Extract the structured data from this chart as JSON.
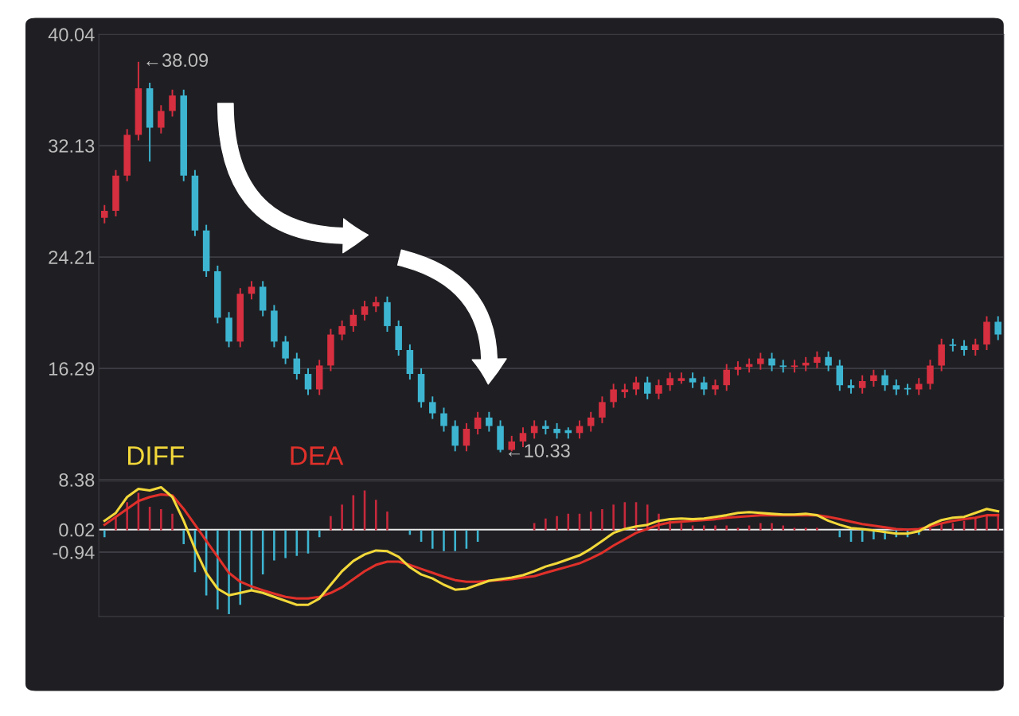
{
  "chart_data": [
    {
      "type": "candlestick",
      "categories": [
        null,
        null,
        null,
        null,
        null,
        null,
        null,
        null,
        null,
        null,
        null,
        null,
        null,
        null,
        null,
        null,
        null,
        null,
        null,
        null,
        null,
        null,
        null,
        null,
        null,
        null,
        null,
        null,
        null,
        null,
        null,
        null,
        null,
        null,
        null,
        null,
        null,
        null,
        null,
        null,
        null,
        null,
        null,
        null,
        null,
        null,
        null,
        null,
        null,
        null,
        null,
        null,
        null,
        null,
        null,
        null,
        null,
        null,
        null,
        null,
        null,
        null,
        null,
        null,
        null,
        null,
        null,
        null,
        null,
        null,
        null,
        null,
        null,
        null,
        null,
        null,
        null,
        null,
        null,
        null
      ],
      "ohlc": [
        [
          27.0,
          27.9,
          26.6,
          27.5
        ],
        [
          27.5,
          30.4,
          27.1,
          30.0
        ],
        [
          30.0,
          33.3,
          29.6,
          32.9
        ],
        [
          32.9,
          38.09,
          32.5,
          36.2
        ],
        [
          36.2,
          36.6,
          31.0,
          33.4
        ],
        [
          33.4,
          35.0,
          33.0,
          34.6
        ],
        [
          34.6,
          36.1,
          34.2,
          35.7
        ],
        [
          35.7,
          36.1,
          29.6,
          30.0
        ],
        [
          30.0,
          30.4,
          25.7,
          26.1
        ],
        [
          26.1,
          26.5,
          22.8,
          23.2
        ],
        [
          23.2,
          23.6,
          19.5,
          19.9
        ],
        [
          19.9,
          20.3,
          17.8,
          18.2
        ],
        [
          18.2,
          22.0,
          17.8,
          21.6
        ],
        [
          21.6,
          22.5,
          21.2,
          22.1
        ],
        [
          22.1,
          22.5,
          20.0,
          20.4
        ],
        [
          20.4,
          20.8,
          17.8,
          18.2
        ],
        [
          18.2,
          18.6,
          16.6,
          17.0
        ],
        [
          17.0,
          17.4,
          15.5,
          15.9
        ],
        [
          15.9,
          16.3,
          14.4,
          14.8
        ],
        [
          14.8,
          16.9,
          14.4,
          16.5
        ],
        [
          16.5,
          19.1,
          16.1,
          18.7
        ],
        [
          18.7,
          19.7,
          18.3,
          19.3
        ],
        [
          19.3,
          20.5,
          18.9,
          20.1
        ],
        [
          20.1,
          21.1,
          19.7,
          20.7
        ],
        [
          20.7,
          21.4,
          20.3,
          21.0
        ],
        [
          21.0,
          21.4,
          18.9,
          19.3
        ],
        [
          19.3,
          19.7,
          17.2,
          17.6
        ],
        [
          17.6,
          18.0,
          15.5,
          15.9
        ],
        [
          15.9,
          16.3,
          13.5,
          13.9
        ],
        [
          13.9,
          14.3,
          12.7,
          13.1
        ],
        [
          13.1,
          13.5,
          11.8,
          12.2
        ],
        [
          12.2,
          12.6,
          10.4,
          10.8
        ],
        [
          10.8,
          12.4,
          10.4,
          12.0
        ],
        [
          12.0,
          13.2,
          11.6,
          12.8
        ],
        [
          12.8,
          13.2,
          11.8,
          12.2
        ],
        [
          12.2,
          12.6,
          10.33,
          10.5
        ],
        [
          10.5,
          11.5,
          10.4,
          11.1
        ],
        [
          11.1,
          12.1,
          10.7,
          11.7
        ],
        [
          11.7,
          12.6,
          11.3,
          12.2
        ],
        [
          12.2,
          12.6,
          11.6,
          12.0
        ],
        [
          12.0,
          12.4,
          11.3,
          11.7
        ],
        [
          11.9,
          12.1,
          11.3,
          11.7
        ],
        [
          11.7,
          12.6,
          11.3,
          12.2
        ],
        [
          12.2,
          13.2,
          11.8,
          12.8
        ],
        [
          12.8,
          14.3,
          12.4,
          13.9
        ],
        [
          13.9,
          15.2,
          13.5,
          14.8
        ],
        [
          14.6,
          15.2,
          14.2,
          14.8
        ],
        [
          14.8,
          15.7,
          14.4,
          15.3
        ],
        [
          15.3,
          15.7,
          14.1,
          14.5
        ],
        [
          14.5,
          15.5,
          14.1,
          15.1
        ],
        [
          15.1,
          16.0,
          14.7,
          15.6
        ],
        [
          15.4,
          16.0,
          15.2,
          15.6
        ],
        [
          15.6,
          16.0,
          14.9,
          15.3
        ],
        [
          15.3,
          15.7,
          14.4,
          14.8
        ],
        [
          14.8,
          15.5,
          14.4,
          15.1
        ],
        [
          15.1,
          16.6,
          14.7,
          16.2
        ],
        [
          16.2,
          16.8,
          15.8,
          16.4
        ],
        [
          16.4,
          17.0,
          16.0,
          16.6
        ],
        [
          16.6,
          17.4,
          16.2,
          17.0
        ],
        [
          17.0,
          17.4,
          16.1,
          16.5
        ],
        [
          16.5,
          16.9,
          16.0,
          16.4
        ],
        [
          16.4,
          16.9,
          16.0,
          16.5
        ],
        [
          16.5,
          17.1,
          16.1,
          16.7
        ],
        [
          16.7,
          17.5,
          16.3,
          17.1
        ],
        [
          17.1,
          17.5,
          16.1,
          16.5
        ],
        [
          16.5,
          16.9,
          14.7,
          15.1
        ],
        [
          15.1,
          15.5,
          14.5,
          14.9
        ],
        [
          14.9,
          15.8,
          14.5,
          15.4
        ],
        [
          15.4,
          16.2,
          15.0,
          15.8
        ],
        [
          15.8,
          16.2,
          14.7,
          15.1
        ],
        [
          15.1,
          15.5,
          14.4,
          14.8
        ],
        [
          14.9,
          15.2,
          14.4,
          14.8
        ],
        [
          14.8,
          15.6,
          14.4,
          15.2
        ],
        [
          15.2,
          16.9,
          14.8,
          16.5
        ],
        [
          16.5,
          18.4,
          16.1,
          18.0
        ],
        [
          18.0,
          18.4,
          17.5,
          17.9
        ],
        [
          17.9,
          18.3,
          17.2,
          17.6
        ],
        [
          17.6,
          18.4,
          17.2,
          18.0
        ],
        [
          18.0,
          20.0,
          17.6,
          19.6
        ],
        [
          19.6,
          20.0,
          18.3,
          18.7
        ]
      ],
      "colors": [
        "#d62f3f",
        "#d62f3f",
        "#d62f3f",
        "#d62f3f",
        "#3db5d1",
        "#d62f3f",
        "#d62f3f",
        "#3db5d1",
        "#3db5d1",
        "#3db5d1",
        "#3db5d1",
        "#3db5d1",
        "#d62f3f",
        "#d62f3f",
        "#3db5d1",
        "#3db5d1",
        "#3db5d1",
        "#3db5d1",
        "#3db5d1",
        "#d62f3f",
        "#d62f3f",
        "#d62f3f",
        "#d62f3f",
        "#d62f3f",
        "#d62f3f",
        "#3db5d1",
        "#3db5d1",
        "#3db5d1",
        "#3db5d1",
        "#3db5d1",
        "#3db5d1",
        "#3db5d1",
        "#d62f3f",
        "#d62f3f",
        "#3db5d1",
        "#3db5d1",
        "#d62f3f",
        "#d62f3f",
        "#d62f3f",
        "#3db5d1",
        "#3db5d1",
        "#3db5d1",
        "#d62f3f",
        "#d62f3f",
        "#d62f3f",
        "#d62f3f",
        "#d62f3f",
        "#d62f3f",
        "#3db5d1",
        "#d62f3f",
        "#d62f3f",
        "#d62f3f",
        "#3db5d1",
        "#3db5d1",
        "#d62f3f",
        "#d62f3f",
        "#d62f3f",
        "#d62f3f",
        "#d62f3f",
        "#3db5d1",
        "#3db5d1",
        "#d62f3f",
        "#d62f3f",
        "#d62f3f",
        "#3db5d1",
        "#3db5d1",
        "#3db5d1",
        "#d62f3f",
        "#d62f3f",
        "#3db5d1",
        "#3db5d1",
        "#3db5d1",
        "#d62f3f",
        "#d62f3f",
        "#d62f3f",
        "#3db5d1",
        "#3db5d1",
        "#d62f3f",
        "#d62f3f",
        "#3db5d1"
      ],
      "ylim": [
        8.38,
        40.04
      ],
      "yticks": [
        8.38,
        16.29,
        24.21,
        32.13,
        40.04
      ],
      "grid": "y",
      "tick_labels": "y",
      "annotations": [
        "←38.09",
        "←10.33"
      ]
    },
    {
      "type": "line",
      "categories": [
        null,
        null,
        null,
        null,
        null,
        null,
        null,
        null,
        null,
        null,
        null,
        null,
        null,
        null,
        null,
        null,
        null,
        null,
        null,
        null,
        null,
        null,
        null,
        null,
        null,
        null,
        null,
        null,
        null,
        null,
        null,
        null,
        null,
        null,
        null,
        null,
        null,
        null,
        null,
        null,
        null,
        null,
        null,
        null,
        null,
        null,
        null,
        null,
        null,
        null,
        null,
        null,
        null,
        null,
        null,
        null,
        null,
        null,
        null,
        null,
        null,
        null,
        null,
        null,
        null,
        null,
        null,
        null,
        null,
        null,
        null,
        null,
        null,
        null,
        null,
        null,
        null,
        null,
        null,
        null
      ],
      "series": [
        {
          "type": "bar",
          "colors": [
            "#3db5d1",
            "#c8283c",
            "#c8283c",
            "#c8283c",
            "#c8283c",
            "#c8283c",
            "#c8283c",
            "#3db5d1",
            "#3db5d1",
            "#3db5d1",
            "#3db5d1",
            "#3db5d1",
            "#3db5d1",
            "#3db5d1",
            "#3db5d1",
            "#3db5d1",
            "#3db5d1",
            "#3db5d1",
            "#3db5d1",
            "#3db5d1",
            "#c8283c",
            "#c8283c",
            "#c8283c",
            "#c8283c",
            "#c8283c",
            "#c8283c",
            "#c8283c",
            "#3db5d1",
            "#3db5d1",
            "#3db5d1",
            "#3db5d1",
            "#3db5d1",
            "#3db5d1",
            "#3db5d1",
            "#c8283c",
            "#c8283c",
            "#c8283c",
            "#c8283c",
            "#c8283c",
            "#c8283c",
            "#c8283c",
            "#c8283c",
            "#c8283c",
            "#c8283c",
            "#c8283c",
            "#c8283c",
            "#c8283c",
            "#c8283c",
            "#c8283c",
            "#c8283c",
            "#c8283c",
            "#c8283c",
            "#c8283c",
            "#c8283c",
            "#c8283c",
            "#c8283c",
            "#c8283c",
            "#c8283c",
            "#c8283c",
            "#c8283c",
            "#c8283c",
            "#c8283c",
            "#c8283c",
            "#c8283c",
            "#c8283c",
            "#3db5d1",
            "#3db5d1",
            "#3db5d1",
            "#3db5d1",
            "#3db5d1",
            "#3db5d1",
            "#3db5d1",
            "#3db5d1",
            "#c8283c",
            "#c8283c",
            "#c8283c",
            "#c8283c",
            "#c8283c",
            "#c8283c",
            "#c8283c"
          ],
          "values": [
            -0.3,
            0.6,
            1.2,
            1.6,
            1.0,
            0.9,
            0.7,
            -0.6,
            -1.8,
            -2.8,
            -3.4,
            -3.6,
            -3.2,
            -2.6,
            -1.9,
            -1.3,
            -1.2,
            -1.1,
            -1.0,
            -0.3,
            0.6,
            1.1,
            1.5,
            1.7,
            1.3,
            0.8,
            0,
            -0.2,
            -0.5,
            -0.8,
            -0.9,
            -0.9,
            -0.8,
            -0.5,
            0,
            0,
            0,
            0,
            0.3,
            0.5,
            0.6,
            0.7,
            0.7,
            0.8,
            0.9,
            1.1,
            1.2,
            1.2,
            1.1,
            0.7,
            0.4,
            0.3,
            0.2,
            0.2,
            0.2,
            0.2,
            0.1,
            0.2,
            0.3,
            0.3,
            0.2,
            0.1,
            0.1,
            0.1,
            0,
            -0.3,
            -0.5,
            -0.5,
            -0.4,
            -0.4,
            -0.3,
            -0.3,
            -0.2,
            0.1,
            0.3,
            0.3,
            0.4,
            0.5,
            0.6,
            0.7
          ]
        },
        {
          "name": "DEA",
          "type": "line",
          "color": "#e0302a",
          "values": [
            0.23,
            0.57,
            0.91,
            1.25,
            1.42,
            1.53,
            1.49,
            0.91,
            0.23,
            -0.46,
            -1.14,
            -1.83,
            -2.21,
            -2.41,
            -2.58,
            -2.72,
            -2.86,
            -2.93,
            -2.93,
            -2.86,
            -2.69,
            -2.45,
            -2.1,
            -1.76,
            -1.49,
            -1.35,
            -1.35,
            -1.49,
            -1.66,
            -1.83,
            -2.0,
            -2.14,
            -2.21,
            -2.21,
            -2.17,
            -2.14,
            -2.1,
            -2.03,
            -1.97,
            -1.83,
            -1.69,
            -1.56,
            -1.42,
            -1.21,
            -0.97,
            -0.66,
            -0.39,
            -0.12,
            0.05,
            0.23,
            0.33,
            0.36,
            0.4,
            0.43,
            0.47,
            0.53,
            0.57,
            0.6,
            0.64,
            0.64,
            0.64,
            0.64,
            0.64,
            0.64,
            0.57,
            0.47,
            0.36,
            0.26,
            0.19,
            0.12,
            0.05,
            0.02,
            0.05,
            0.16,
            0.29,
            0.4,
            0.47,
            0.53,
            0.64,
            0.64
          ]
        },
        {
          "name": "DIFF",
          "type": "line",
          "color": "#f2d83a",
          "values": [
            0.4,
            0.74,
            1.42,
            1.77,
            1.7,
            1.84,
            1.42,
            0.4,
            -0.8,
            -1.83,
            -2.51,
            -2.79,
            -2.69,
            -2.58,
            -2.69,
            -2.86,
            -3.03,
            -3.2,
            -3.2,
            -2.93,
            -2.34,
            -1.76,
            -1.32,
            -1.04,
            -0.87,
            -0.9,
            -1.14,
            -1.59,
            -1.9,
            -2.07,
            -2.34,
            -2.55,
            -2.51,
            -2.34,
            -2.17,
            -2.1,
            -2.03,
            -1.93,
            -1.76,
            -1.56,
            -1.42,
            -1.25,
            -1.08,
            -0.8,
            -0.46,
            -0.12,
            0.05,
            0.16,
            0.23,
            0.4,
            0.47,
            0.5,
            0.47,
            0.5,
            0.57,
            0.64,
            0.74,
            0.77,
            0.74,
            0.7,
            0.67,
            0.67,
            0.7,
            0.64,
            0.4,
            0.23,
            0.09,
            0.05,
            -0.01,
            -0.08,
            -0.15,
            -0.15,
            -0.05,
            0.23,
            0.43,
            0.53,
            0.57,
            0.74,
            0.91,
            0.81
          ]
        }
      ],
      "ylim": [
        -3.7,
        2.1
      ],
      "yticks": [
        -0.94,
        0.02
      ],
      "tick_labels": "y",
      "legend": false,
      "ref_lines": [
        {
          "axis": "y",
          "value": 0.02,
          "color": "#e8e8e8"
        },
        {
          "axis": "y",
          "value": -0.94,
          "color": "#3c3c44"
        }
      ]
    }
  ]
}
